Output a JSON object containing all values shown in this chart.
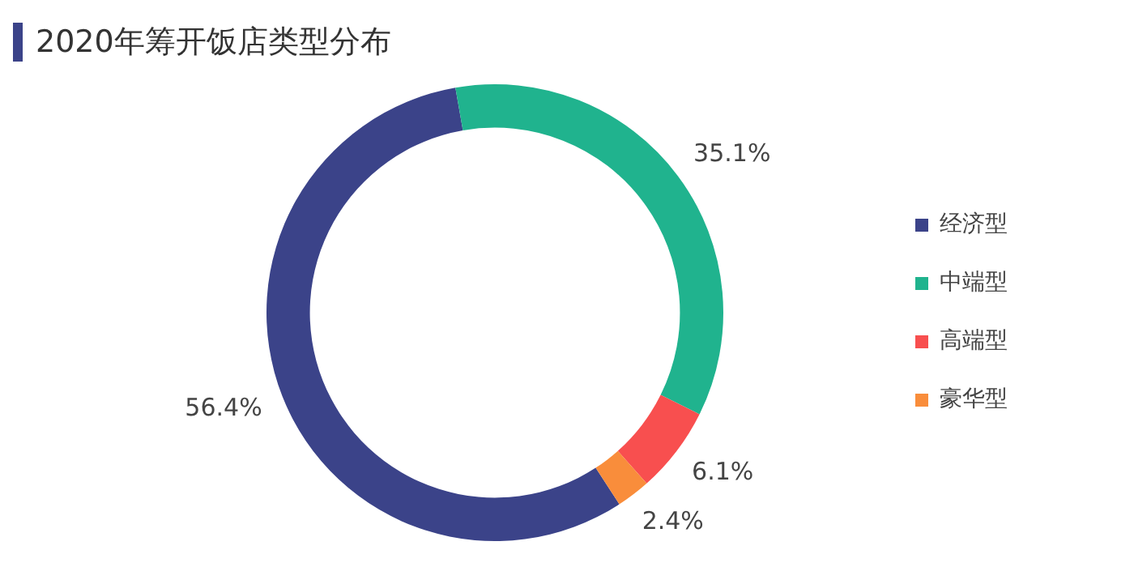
{
  "chart_data": {
    "type": "donut",
    "title": "2020年筹开饭店类型分布",
    "categories": [
      "经济型",
      "中端型",
      "高端型",
      "豪华型"
    ],
    "values": [
      56.4,
      35.1,
      6.1,
      2.4
    ],
    "value_labels": [
      "56.4%",
      "35.1%",
      "6.1%",
      "2.4%"
    ],
    "colors": [
      "#3b4389",
      "#20b38e",
      "#f84f4f",
      "#f98d3b"
    ],
    "legend": "right"
  }
}
